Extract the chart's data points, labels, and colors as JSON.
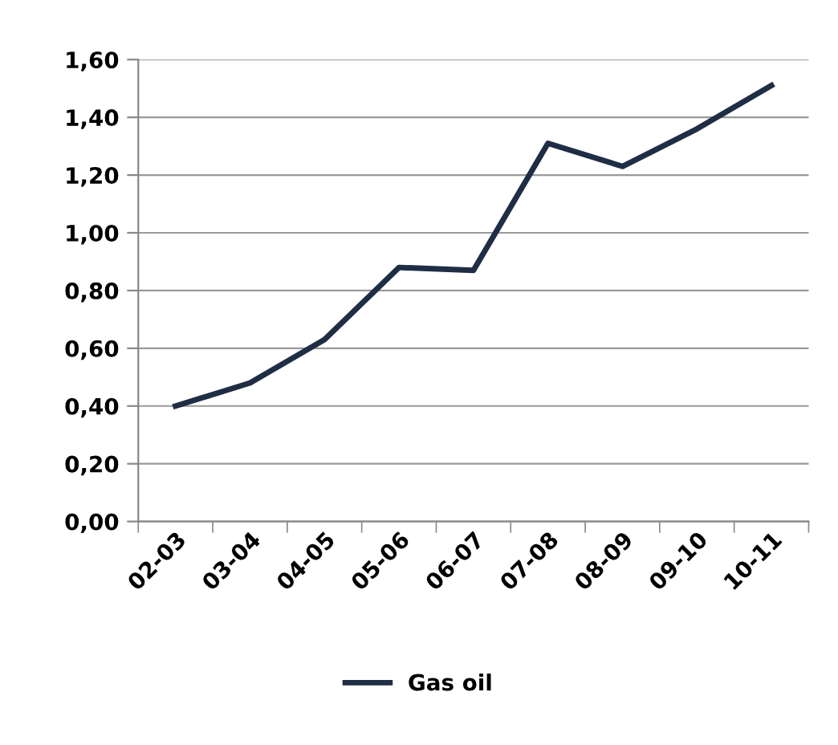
{
  "chart_data": {
    "type": "line",
    "categories": [
      "02-03",
      "03-04",
      "04-05",
      "05-06",
      "06-07",
      "07-08",
      "08-09",
      "09-10",
      "10-11"
    ],
    "series": [
      {
        "name": "Gas oil",
        "color": "#1f2d45",
        "values": [
          0.4,
          0.48,
          0.63,
          0.88,
          0.87,
          1.31,
          1.23,
          1.36,
          1.51
        ]
      }
    ],
    "ylim": [
      0,
      1.6
    ],
    "yticks": [
      {
        "value": 0,
        "label": "0,00"
      },
      {
        "value": 0.2,
        "label": "0,20"
      },
      {
        "value": 0.4,
        "label": "0,40"
      },
      {
        "value": 0.6,
        "label": "0,60"
      },
      {
        "value": 0.8,
        "label": "0,80"
      },
      {
        "value": 1.0,
        "label": "1,00"
      },
      {
        "value": 1.2,
        "label": "1,20"
      },
      {
        "value": 1.4,
        "label": "1,40"
      },
      {
        "value": 1.6,
        "label": "1,60"
      }
    ],
    "grid": "y",
    "legend": "bottom",
    "marker": "none",
    "line_style": "solid"
  }
}
